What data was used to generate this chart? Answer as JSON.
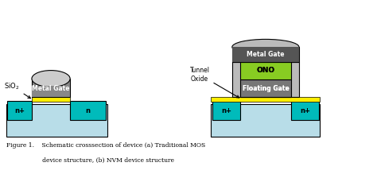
{
  "fig_width": 4.74,
  "fig_height": 2.24,
  "dpi": 100,
  "bg_color": "#ffffff",
  "caption_line1": "Figure 1.    Schematic crosssection of device (a) Traditional MOS",
  "caption_line2": "                   device structure, (b) NVM device structure",
  "colors": {
    "substrate_blue": "#b8dde8",
    "teal_nplus": "#00bbbb",
    "yellow_oxide": "#ffee00",
    "gray_gate_body": "#888888",
    "light_gray_dome": "#cccccc",
    "green_ono": "#88cc22",
    "dark_gray_floating": "#777777",
    "dark_gray_metal": "#555555",
    "light_gray_spacer": "#bbbbbb"
  },
  "xlim": [
    0,
    10
  ],
  "ylim": [
    0,
    4.8
  ]
}
